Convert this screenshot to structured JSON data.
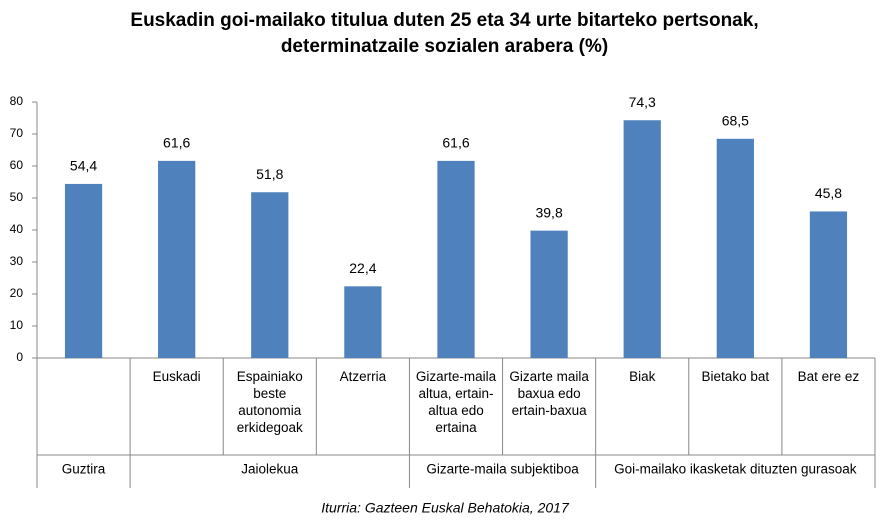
{
  "chart_data": {
    "type": "bar",
    "title": "Euskadin goi-mailako titulua duten 25 eta 34 urte bitarteko pertsonak, determinatzaile sozialen arabera (%)",
    "categories": [
      null,
      "Euskadi",
      "Espainiako beste autonomia erkidegoak",
      "Atzerria",
      "Gizarte-maila altua, ertain-altua edo ertaina",
      "Gizarte maila baxua edo ertain-baxua",
      "Biak",
      "Bietako bat",
      "Bat ere ez"
    ],
    "category_groups": [
      "Guztira",
      "Jaiolekua",
      "Jaiolekua",
      "Jaiolekua",
      "Gizarte-maila subjektiboa",
      "Gizarte-maila subjektiboa",
      "Goi-mailako ikasketak dituzten gurasoak",
      "Goi-mailako ikasketak dituzten gurasoak",
      "Goi-mailako ikasketak dituzten gurasoak"
    ],
    "values": [
      54.4,
      61.6,
      51.8,
      22.4,
      61.6,
      39.8,
      74.3,
      68.5,
      45.8
    ],
    "value_labels": [
      "54,4",
      "61,6",
      "51,8",
      "22,4",
      "61,6",
      "39,8",
      "74,3",
      "68,5",
      "45,8"
    ],
    "color": "#4f81bd",
    "ylim": [
      0,
      80
    ],
    "yticks": [
      0,
      10,
      20,
      30,
      40,
      50,
      60,
      70,
      80
    ],
    "grid": false,
    "source": "Iturria: Gazteen Euskal Behatokia, 2017"
  }
}
